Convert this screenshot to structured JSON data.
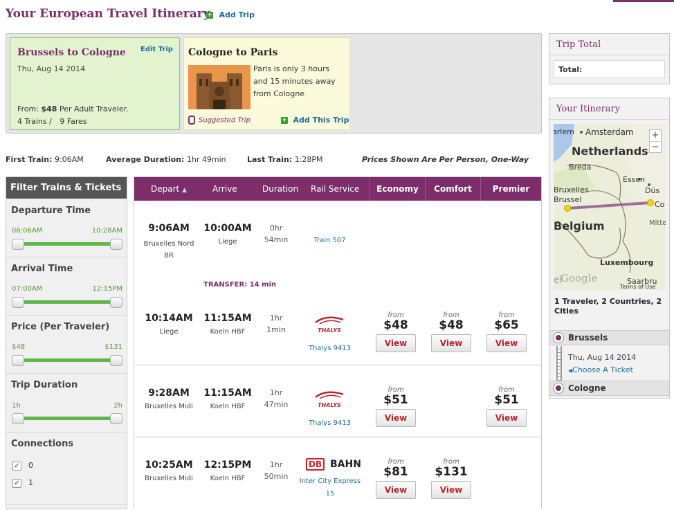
{
  "page": {
    "title": "Your European Travel Itinerary",
    "add_trip": "Add Trip"
  },
  "current_trip": {
    "route": "Brussels to Cologne",
    "edit": "Edit Trip",
    "date": "Thu, Aug 14 2014",
    "from_prefix": "From:",
    "price": "$48",
    "per": "Per Adult Traveler.",
    "trains": "4 Trains /",
    "fares": "9 Fares"
  },
  "suggested": {
    "route": "Cologne to Paris",
    "desc_line1": "Paris is only 3 hours",
    "desc_line2": "and 15 minutes away",
    "desc_line3": "from Cologne",
    "label": "Suggested Trip",
    "add": "Add This Trip"
  },
  "summary": {
    "first_label": "First Train:",
    "first": "9:06AM",
    "avg_label": "Average Duration:",
    "avg": "1hr 49min",
    "last_label": "Last Train:",
    "last": "1:28PM",
    "note": "Prices Shown Are Per Person, One-Way"
  },
  "filters": {
    "title": "Filter Trains & Tickets",
    "departure": {
      "label": "Departure Time",
      "min": "06:06AM",
      "max": "10:28AM"
    },
    "arrival": {
      "label": "Arrival Time",
      "min": "07:00AM",
      "max": "12:15PM"
    },
    "price": {
      "label": "Price (Per Traveler)",
      "min": "$48",
      "max": "$131"
    },
    "duration": {
      "label": "Trip Duration",
      "min": "1h",
      "max": "2h"
    },
    "connections": {
      "label": "Connections",
      "opt0": "0",
      "opt1": "1"
    }
  },
  "table": {
    "headers": {
      "depart": "Depart",
      "arrive": "Arrive",
      "duration": "Duration",
      "rail": "Rail Service",
      "economy": "Economy",
      "comfort": "Comfort",
      "premier": "Premier"
    }
  },
  "trains": {
    "t1": {
      "leg1": {
        "dep": "9:06AM",
        "dep_st1": "Bruxelles Nord",
        "dep_st2": "BR",
        "arr": "10:00AM",
        "arr_st": "Liege",
        "dur1": "0hr",
        "dur2": "54min",
        "svc": "Train 507"
      },
      "transfer": "TRANSFER: 14 min",
      "leg2": {
        "dep": "10:14AM",
        "dep_st": "Liege",
        "arr": "11:15AM",
        "arr_st": "Koeln HBF",
        "dur1": "1hr",
        "dur2": "1min",
        "svc": "Thalys 9413"
      },
      "from": "from",
      "eco": "$48",
      "com": "$48",
      "pre": "$65",
      "view": "View"
    },
    "t2": {
      "dep": "9:28AM",
      "dep_st": "Bruxelles Midi",
      "arr": "11:15AM",
      "arr_st": "Koeln HBF",
      "dur1": "1hr",
      "dur2": "47min",
      "svc": "Thalys 9413",
      "from": "from",
      "eco": "$51",
      "pre": "$51",
      "view": "View"
    },
    "t3": {
      "dep": "10:25AM",
      "dep_st": "Bruxelles Midi",
      "arr": "12:15PM",
      "arr_st": "Koeln HBF",
      "dur1": "1hr",
      "dur2": "50min",
      "svc1": "Inter City Express",
      "svc2": "15",
      "from": "from",
      "eco": "$81",
      "com": "$131",
      "view": "View"
    }
  },
  "logos": {
    "thalys": "THALYS",
    "db": "DB",
    "bahn": "BAHN"
  },
  "trip_total": {
    "title": "Trip Total",
    "total_label": "Total:"
  },
  "itinerary": {
    "title": "Your Itinerary",
    "map": {
      "amsterdam": "Amsterdam",
      "netherlands": "Netherlands",
      "breda": "Breda",
      "essen": "Essen",
      "dus": "Düs",
      "bruxelles": "Bruxelles",
      "brussel": "Brussel",
      "co": "Co",
      "belgium": "Belgium",
      "mitte": "Mitte",
      "luxembourg": "Luxembourg",
      "saarbru": "Saarbru",
      "terms": "Terms of Use",
      "google": "Google",
      "erlem": "arlem",
      "liege": "ei",
      "zoom_in": "+",
      "zoom_out": "−"
    },
    "info": "1 Traveler, 2 Countries, 2 Cities",
    "stop1": "Brussels",
    "date": "Thu, Aug 14 2014",
    "choose": "Choose A Ticket",
    "stop2": "Cologne"
  },
  "colors": {
    "brand": "#7a2e6b",
    "header_bar": "#7d2d6a",
    "accent_green": "#3c9b2c",
    "link": "#1b6d9e"
  }
}
